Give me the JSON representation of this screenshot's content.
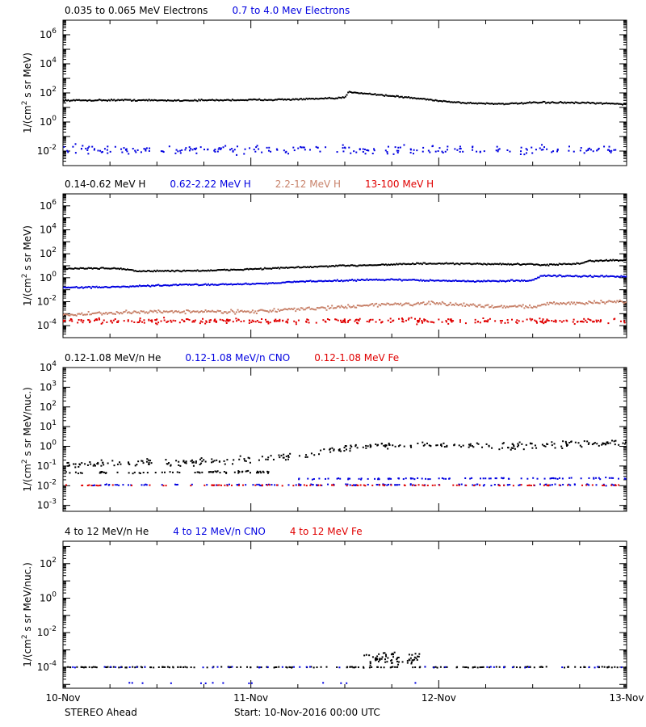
{
  "colors": {
    "black": "#000000",
    "blue": "#0000e0",
    "tan": "#c8826a",
    "red": "#e00000"
  },
  "footer": {
    "left": "STEREO Ahead",
    "center": "Start: 10-Nov-2016 00:00 UTC"
  },
  "chart_data": [
    {
      "type": "scatter",
      "scale": "log",
      "ylim": [
        0.001,
        10000000
      ],
      "yticks": [
        {
          "value": 0.01,
          "base": "10",
          "exp": "-2"
        },
        {
          "value": 1,
          "base": "10",
          "exp": "0"
        },
        {
          "value": 100,
          "base": "10",
          "exp": "2"
        },
        {
          "value": 10000,
          "base": "10",
          "exp": "4"
        },
        {
          "value": 1000000,
          "base": "10",
          "exp": "6"
        }
      ],
      "ylabel_base": "1/(cm",
      "ylabel_exp": "2",
      "ylabel_rest": " s sr MeV)",
      "xlim": [
        0,
        3
      ],
      "xticks": [
        "10-Nov",
        "11-Nov",
        "12-Nov",
        "13-Nov"
      ],
      "legend": [
        {
          "name": "0.035 to 0.065 MeV Electrons",
          "color": "black"
        },
        {
          "name": "0.7 to 4.0 Mev Electrons",
          "color": "blue"
        }
      ],
      "series": [
        {
          "color": "black",
          "style": "line",
          "points": [
            [
              0,
              30
            ],
            [
              0.3,
              32
            ],
            [
              0.6,
              30
            ],
            [
              0.9,
              32
            ],
            [
              1.2,
              35
            ],
            [
              1.45,
              42
            ],
            [
              1.5,
              48
            ],
            [
              1.52,
              110
            ],
            [
              1.53,
              115
            ],
            [
              1.6,
              95
            ],
            [
              1.7,
              70
            ],
            [
              1.9,
              40
            ],
            [
              2.05,
              25
            ],
            [
              2.15,
              20
            ],
            [
              2.3,
              18
            ],
            [
              2.4,
              18
            ],
            [
              2.5,
              21
            ],
            [
              2.6,
              22
            ],
            [
              2.8,
              20
            ],
            [
              3,
              17
            ]
          ],
          "jitter": 0.04
        },
        {
          "color": "blue",
          "style": "scatter",
          "points": [
            [
              0,
              0.012
            ],
            [
              3,
              0.012
            ]
          ],
          "jitter": 0.25,
          "n": 240
        }
      ]
    },
    {
      "type": "scatter",
      "scale": "log",
      "ylim": [
        1e-05,
        10000000
      ],
      "yticks": [
        {
          "value": 0.0001,
          "base": "10",
          "exp": "-4"
        },
        {
          "value": 0.01,
          "base": "10",
          "exp": "-2"
        },
        {
          "value": 1,
          "base": "10",
          "exp": "0"
        },
        {
          "value": 100,
          "base": "10",
          "exp": "2"
        },
        {
          "value": 10000,
          "base": "10",
          "exp": "4"
        },
        {
          "value": 1000000,
          "base": "10",
          "exp": "6"
        }
      ],
      "ylabel_base": "1/(cm",
      "ylabel_exp": "2",
      "ylabel_rest": " s sr MeV)",
      "xlim": [
        0,
        3
      ],
      "xticks": [
        "10-Nov",
        "11-Nov",
        "12-Nov",
        "13-Nov"
      ],
      "legend": [
        {
          "name": "0.14-0.62 MeV H",
          "color": "black"
        },
        {
          "name": "0.62-2.22 MeV H",
          "color": "blue"
        },
        {
          "name": "2.2-12 MeV H",
          "color": "tan"
        },
        {
          "name": "13-100 MeV H",
          "color": "red"
        }
      ],
      "series": [
        {
          "color": "black",
          "style": "line",
          "points": [
            [
              0,
              6
            ],
            [
              0.3,
              6
            ],
            [
              0.4,
              3.5
            ],
            [
              0.8,
              4
            ],
            [
              1.1,
              6
            ],
            [
              1.5,
              10
            ],
            [
              1.9,
              15
            ],
            [
              2.3,
              14
            ],
            [
              2.6,
              12
            ],
            [
              2.75,
              15
            ],
            [
              2.8,
              25
            ],
            [
              3,
              30
            ]
          ],
          "jitter": 0.05
        },
        {
          "color": "blue",
          "style": "line",
          "points": [
            [
              0,
              0.15
            ],
            [
              0.3,
              0.17
            ],
            [
              0.6,
              0.25
            ],
            [
              1.0,
              0.3
            ],
            [
              1.3,
              0.5
            ],
            [
              1.7,
              0.7
            ],
            [
              2.2,
              0.5
            ],
            [
              2.5,
              0.6
            ],
            [
              2.55,
              1.5
            ],
            [
              2.8,
              1.3
            ],
            [
              3,
              1.3
            ]
          ],
          "jitter": 0.05
        },
        {
          "color": "tan",
          "style": "line",
          "points": [
            [
              0,
              0.0008
            ],
            [
              0.5,
              0.0015
            ],
            [
              1.0,
              0.0015
            ],
            [
              1.4,
              0.003
            ],
            [
              1.7,
              0.006
            ],
            [
              2.0,
              0.007
            ],
            [
              2.3,
              0.004
            ],
            [
              2.5,
              0.004
            ],
            [
              2.6,
              0.007
            ],
            [
              3,
              0.01
            ]
          ],
          "jitter": 0.12
        },
        {
          "color": "red",
          "style": "scatter",
          "points": [
            [
              0,
              0.00025
            ],
            [
              3,
              0.00025
            ]
          ],
          "jitter": 0.18,
          "n": 340
        }
      ]
    },
    {
      "type": "scatter",
      "scale": "log",
      "ylim": [
        0.0005,
        10000
      ],
      "yticks": [
        {
          "value": 0.001,
          "base": "10",
          "exp": "-3"
        },
        {
          "value": 0.01,
          "base": "10",
          "exp": "-2"
        },
        {
          "value": 0.1,
          "base": "10",
          "exp": "-1"
        },
        {
          "value": 1,
          "base": "10",
          "exp": "0"
        },
        {
          "value": 10,
          "base": "10",
          "exp": "1"
        },
        {
          "value": 100,
          "base": "10",
          "exp": "2"
        },
        {
          "value": 1000,
          "base": "10",
          "exp": "3"
        },
        {
          "value": 10000,
          "base": "10",
          "exp": "4"
        }
      ],
      "ylabel_base": "1/(cm",
      "ylabel_exp": "2",
      "ylabel_rest": " s sr MeV/nuc.)",
      "xlim": [
        0,
        3
      ],
      "xticks": [
        "10-Nov",
        "11-Nov",
        "12-Nov",
        "13-Nov"
      ],
      "legend": [
        {
          "name": "0.12-1.08 MeV/n He",
          "color": "black"
        },
        {
          "name": "0.12-1.08 MeV/n CNO",
          "color": "blue"
        },
        {
          "name": "0.12-1.08 MeV Fe",
          "color": "red"
        }
      ],
      "series": [
        {
          "color": "black",
          "style": "scatter",
          "points": [
            [
              0,
              0.12
            ],
            [
              0.5,
              0.15
            ],
            [
              1.0,
              0.2
            ],
            [
              1.3,
              0.35
            ],
            [
              1.5,
              0.8
            ],
            [
              1.7,
              1.2
            ],
            [
              2.0,
              1.1
            ],
            [
              2.4,
              1.0
            ],
            [
              2.7,
              1.3
            ],
            [
              3,
              1.5
            ]
          ],
          "jitter": 0.15,
          "n": 300
        },
        {
          "color": "black",
          "style": "scatter",
          "points": [
            [
              0,
              0.045
            ],
            [
              1.1,
              0.05
            ]
          ],
          "jitter": 0.05,
          "n": 70
        },
        {
          "color": "blue",
          "style": "scatter",
          "points": [
            [
              0.15,
              0.011
            ],
            [
              3,
              0.011
            ]
          ],
          "jitter": 0.03,
          "n": 130
        },
        {
          "color": "blue",
          "style": "scatter",
          "points": [
            [
              1.25,
              0.022
            ],
            [
              3,
              0.024
            ]
          ],
          "jitter": 0.03,
          "n": 90
        },
        {
          "color": "red",
          "style": "scatter",
          "points": [
            [
              0,
              0.0105
            ],
            [
              3,
              0.0105
            ]
          ],
          "jitter": 0.02,
          "n": 100
        }
      ]
    },
    {
      "type": "scatter",
      "scale": "log",
      "ylim": [
        6e-06,
        2000
      ],
      "yticks": [
        {
          "value": 0.0001,
          "base": "10",
          "exp": "-4"
        },
        {
          "value": 0.01,
          "base": "10",
          "exp": "-2"
        },
        {
          "value": 1,
          "base": "10",
          "exp": "0"
        },
        {
          "value": 100,
          "base": "10",
          "exp": "2"
        }
      ],
      "ylabel_base": "1/(cm",
      "ylabel_exp": "2",
      "ylabel_rest": " s sr MeV/nuc.)",
      "xlim": [
        0,
        3
      ],
      "xticks": [
        "10-Nov",
        "11-Nov",
        "12-Nov",
        "13-Nov"
      ],
      "legend": [
        {
          "name": "4 to 12 MeV/n He",
          "color": "black"
        },
        {
          "name": "4 to 12 MeV/n CNO",
          "color": "blue"
        },
        {
          "name": "4 to 12 MeV Fe",
          "color": "red"
        }
      ],
      "series": [
        {
          "color": "black",
          "style": "scatter",
          "points": [
            [
              0,
              0.0001
            ],
            [
              3,
              0.0001
            ]
          ],
          "jitter": 0.02,
          "n": 180
        },
        {
          "color": "black",
          "style": "scatter",
          "points": [
            [
              1.6,
              0.0002
            ],
            [
              1.75,
              0.0004
            ],
            [
              1.9,
              0.0003
            ]
          ],
          "jitter": 0.35,
          "n": 70
        },
        {
          "color": "blue",
          "style": "scatter",
          "points": [
            [
              0,
              0.0001
            ],
            [
              3,
              0.0001
            ]
          ],
          "jitter": 0.02,
          "n": 40
        },
        {
          "color": "blue",
          "style": "scatter",
          "points": [
            [
              0,
              1.2e-05
            ],
            [
              2,
              1.2e-05
            ]
          ],
          "jitter": 0.02,
          "n": 14
        }
      ]
    }
  ]
}
